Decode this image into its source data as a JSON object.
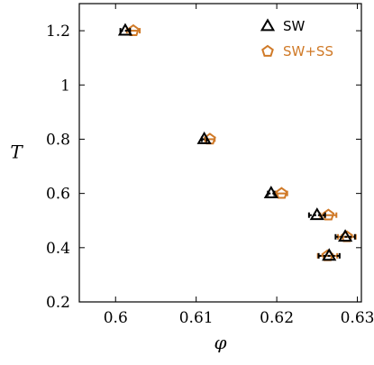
{
  "chart_data": {
    "type": "scatter",
    "xlabel": "φ",
    "ylabel": "T",
    "xlim": [
      0.5955,
      0.6305
    ],
    "ylim": [
      0.2,
      1.3
    ],
    "x_ticks": [
      "0.6",
      "0.61",
      "0.62",
      "0.63"
    ],
    "y_ticks": [
      "0.2",
      "0.4",
      "0.6",
      "0.8",
      "1",
      "1.2"
    ],
    "grid": false,
    "legend_position": "top-right",
    "series": [
      {
        "name": "SW",
        "marker": "triangle",
        "color": "#000000",
        "errorbar_style": "dashed",
        "points": [
          {
            "x": 0.6012,
            "y": 1.2,
            "xerr": 0.0006
          },
          {
            "x": 0.611,
            "y": 0.8,
            "xerr": 0.0003
          },
          {
            "x": 0.6193,
            "y": 0.6,
            "xerr": 0.0004
          },
          {
            "x": 0.625,
            "y": 0.52,
            "xerr": 0.001
          },
          {
            "x": 0.6285,
            "y": 0.44,
            "xerr": 0.0012
          },
          {
            "x": 0.6265,
            "y": 0.37,
            "xerr": 0.0013
          }
        ]
      },
      {
        "name": "SW+SS",
        "marker": "pentagon",
        "color": "#d07a28",
        "errorbar_style": "solid",
        "points": [
          {
            "x": 0.6022,
            "y": 1.2,
            "xerr": 0.0008
          },
          {
            "x": 0.6117,
            "y": 0.8,
            "xerr": 0.0006
          },
          {
            "x": 0.6206,
            "y": 0.6,
            "xerr": 0.0007
          },
          {
            "x": 0.6264,
            "y": 0.52,
            "xerr": 0.001
          },
          {
            "x": 0.6287,
            "y": 0.44,
            "xerr": 0.0011
          },
          {
            "x": 0.6263,
            "y": 0.37,
            "xerr": 0.0012
          }
        ]
      }
    ]
  }
}
